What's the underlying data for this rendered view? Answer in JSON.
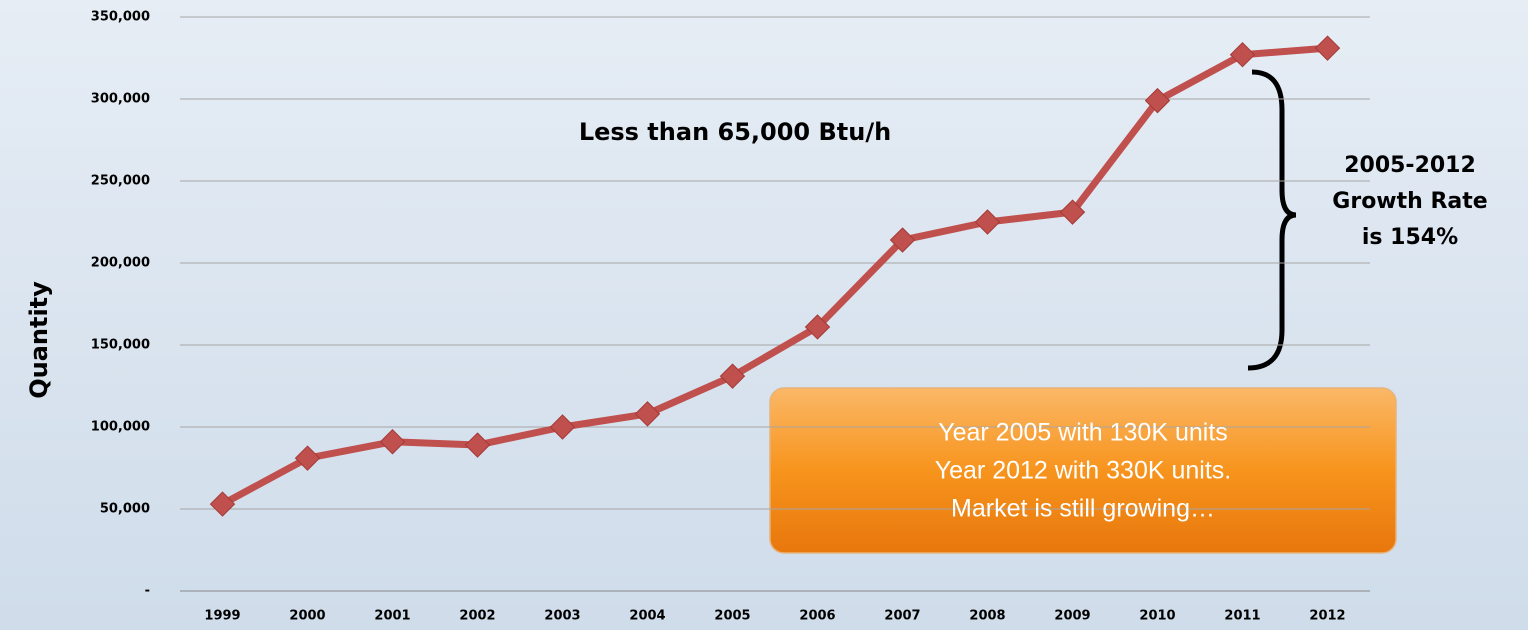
{
  "chart_data": {
    "type": "line",
    "y_label": "Quantity",
    "categories": [
      "1999",
      "2000",
      "2001",
      "2002",
      "2003",
      "2004",
      "2005",
      "2006",
      "2007",
      "2008",
      "2009",
      "2010",
      "2011",
      "2012"
    ],
    "series": [
      {
        "name": "Quantity",
        "color": "#c0504d",
        "values": [
          53000,
          81000,
          91000,
          89000,
          100000,
          108000,
          131000,
          161000,
          214000,
          225000,
          231000,
          299000,
          327000,
          331000
        ]
      }
    ],
    "ylim": [
      0,
      350000
    ],
    "yticks": [
      {
        "value": 0,
        "label": "-"
      },
      {
        "value": 50000,
        "label": "50,000"
      },
      {
        "value": 100000,
        "label": "100,000"
      },
      {
        "value": 150000,
        "label": "150,000"
      },
      {
        "value": 200000,
        "label": "200,000"
      },
      {
        "value": 250000,
        "label": "250,000"
      },
      {
        "value": 300000,
        "label": "300,000"
      },
      {
        "value": 350000,
        "label": "350,000"
      }
    ],
    "grid": true,
    "annotations": {
      "subtitle": "Less than 65,000 Btu/h",
      "growth": [
        "2005-2012",
        "Growth Rate",
        "is 154%"
      ],
      "box": [
        "Year 2005 with 130K units",
        "Year 2012 with 330K units.",
        "Market is still growing…"
      ]
    }
  }
}
